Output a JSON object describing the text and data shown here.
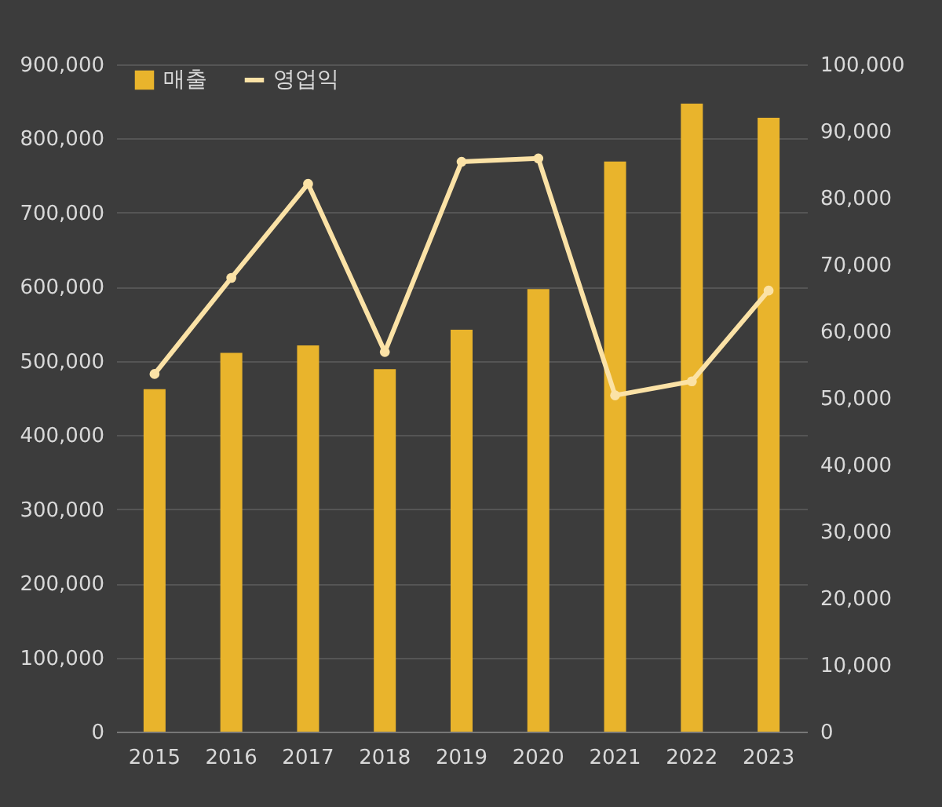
{
  "chart_data": {
    "type": "bar",
    "categories": [
      "2015",
      "2016",
      "2017",
      "2018",
      "2019",
      "2020",
      "2021",
      "2022",
      "2023"
    ],
    "series": [
      {
        "name": "매출",
        "color": "#e9b42c",
        "values": [
          462000,
          511000,
          521000,
          489000,
          542000,
          597000,
          769000,
          847000,
          828000
        ]
      },
      {
        "name": "영업익",
        "type": "line",
        "axis": "y2",
        "color": "#fbe2a6",
        "values": [
          53600,
          68000,
          82100,
          56900,
          85400,
          85900,
          50400,
          52500,
          66100
        ]
      }
    ],
    "ylim": [
      0,
      900000
    ],
    "yticks": [
      0,
      {
        "value": 100000,
        "label": "100,000"
      },
      {
        "value": 200000,
        "label": "200,000"
      },
      {
        "value": 300000,
        "label": "300,000"
      },
      {
        "value": 400000,
        "label": "400,000"
      },
      {
        "value": 500000,
        "label": "500,000"
      },
      {
        "value": 600000,
        "label": "600,000"
      },
      {
        "value": 700000,
        "label": "700,000"
      },
      {
        "value": 800000,
        "label": "800,000"
      },
      {
        "value": 900000,
        "label": "900,000"
      }
    ],
    "y2lim": [
      0,
      100000
    ],
    "y2ticks": [
      0,
      {
        "value": 10000,
        "label": "10,000"
      },
      {
        "value": 20000,
        "label": "20,000"
      },
      {
        "value": 30000,
        "label": "30,000"
      },
      {
        "value": 40000,
        "label": "40,000"
      },
      {
        "value": 50000,
        "label": "50,000"
      },
      {
        "value": 60000,
        "label": "60,000"
      },
      {
        "value": 70000,
        "label": "70,000"
      },
      {
        "value": 80000,
        "label": "80,000"
      },
      {
        "value": 90000,
        "label": "90,000"
      },
      {
        "value": 100000,
        "label": "100,000"
      }
    ],
    "grid": "y",
    "legend": "top left",
    "marker": "circle"
  }
}
